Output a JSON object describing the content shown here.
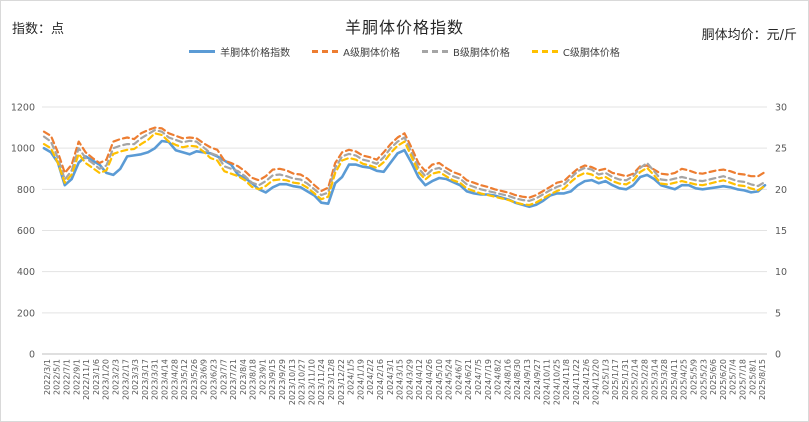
{
  "header": {
    "left_label": "指数：点",
    "right_label": "胴体均价：元/斤"
  },
  "chart_data": {
    "type": "line",
    "title": "羊胴体价格指数",
    "xlabel": "",
    "ylabel": "",
    "y_left": {
      "lim": [
        0,
        1200
      ],
      "ticks": [
        "0",
        "200",
        "400",
        "600",
        "800",
        "1000",
        "1200"
      ]
    },
    "y_right": {
      "lim": [
        0,
        30
      ],
      "ticks": [
        "0",
        "5",
        "10",
        "15",
        "20",
        "25",
        "30"
      ]
    },
    "legend_position": "top-center",
    "grid": true,
    "x_tick_labels": [
      "2022/3/1",
      "2022/5/1",
      "2022/7/1",
      "2022/9/1",
      "2022/11/1",
      "2023/1/6",
      "2023/1/20",
      "2023/2/3",
      "2023/2/17",
      "2023/3/3",
      "2023/3/17",
      "2023/3/31",
      "2023/4/14",
      "2023/4/28",
      "2023/5/12",
      "2023/5/26",
      "2023/6/9",
      "2023/6/23",
      "2023/7/7",
      "2023/7/21",
      "2023/8/4",
      "2023/8/18",
      "2023/9/1",
      "2023/9/15",
      "2023/9/29",
      "2023/10/13",
      "2023/10/27",
      "2023/11/10",
      "2023/11/24",
      "2023/12/8",
      "2023/12/22",
      "2024/1/5",
      "2024/1/19",
      "2024/2/2",
      "2024/2/16",
      "2024/3/1",
      "2024/3/15",
      "2024/3/29",
      "2024/4/12",
      "2024/4/26",
      "2024/5/10",
      "2024/5/24",
      "2024/6/7",
      "2024/6/21",
      "2024/7/5",
      "2024/7/19",
      "2024/8/2",
      "2024/8/16",
      "2024/8/30",
      "2024/9/13",
      "2024/9/27",
      "2024/10/11",
      "2024/10/25",
      "2024/11/8",
      "2024/11/22",
      "2024/12/6",
      "2024/12/20",
      "2025/1/3",
      "2025/1/17",
      "2025/1/31",
      "2025/2/14",
      "2025/2/28",
      "2025/3/14",
      "2025/3/28",
      "2025/4/11",
      "2025/4/25",
      "2025/5/9",
      "2025/5/23",
      "2025/6/6",
      "2025/6/20",
      "2025/7/4",
      "2025/7/18",
      "2025/8/1",
      "2025/8/15"
    ],
    "x_tick_labels_display": [
      "2022/3/1",
      "2022/5/1",
      "2022/7/1",
      "2022/9/1",
      "2022/11/1",
      "2023/1/6",
      "2023/1/20",
      "2023/2/3",
      "2023/2/17",
      "2023/3/3",
      "2023/3/17",
      "2023/3/31",
      "2023/4/14",
      "2023/4/28",
      "2023/5/12",
      "2023/5/26",
      "2023/6/9",
      "2023/6/23",
      "2023/7/7",
      "2023/7/21",
      "2023/8/4",
      "2023/8/18",
      "2023/9/1",
      "2023/9/15",
      "2023/9/29",
      "2023/10/13",
      "2023/10/27",
      "2023/11/10",
      "2023/11/24",
      "2023/12/8",
      "2023/12/22",
      "2024/1/5",
      "2024/1/19",
      "2024/2/2",
      "2024/2/16",
      "2024/3/1",
      "2024/3/15",
      "2024/3/29",
      "2024/4/12",
      "2024/4/26",
      "2024/5/10",
      "2024/5/24",
      "2024/6/7",
      "2024/6/21",
      "2024/7/5",
      "2024/7/19",
      "2024/8/2",
      "2024/8/16",
      "2024/8/30",
      "2024/9/13",
      "2024/9/27",
      "2024/10/11",
      "2024/10/25",
      "2024/11/8",
      "2024/11/22",
      "2024/12/6",
      "2024/12/20",
      "2025/1/3",
      "2025/1/17",
      "2025/1/31",
      "2025/2/14",
      "2025/2/28",
      "2025/3/14",
      "2025/3/28",
      "2025/4/11",
      "2025/4/25",
      "2025/5/9",
      "2025/5/23",
      "2025/6/6",
      "2025/6/20",
      "2025/7/4",
      "2025/7/18",
      "2025/8/1",
      "2025/8/15"
    ],
    "series": [
      {
        "name": "羊胴体价格指数",
        "axis": "left",
        "color": "#5B9BD5",
        "style": "solid",
        "values": [
          1000,
          980,
          930,
          820,
          850,
          930,
          960,
          940,
          920,
          880,
          870,
          900,
          960,
          965,
          970,
          980,
          1000,
          1035,
          1030,
          990,
          980,
          970,
          985,
          980,
          975,
          960,
          940,
          920,
          870,
          855,
          830,
          800,
          785,
          810,
          825,
          825,
          815,
          810,
          790,
          770,
          735,
          730,
          830,
          860,
          920,
          920,
          910,
          905,
          890,
          885,
          930,
          975,
          990,
          930,
          860,
          820,
          840,
          855,
          850,
          835,
          820,
          790,
          780,
          775,
          775,
          770,
          760,
          750,
          735,
          725,
          715,
          725,
          745,
          770,
          780,
          780,
          790,
          820,
          840,
          845,
          830,
          840,
          820,
          805,
          800,
          820,
          860,
          870,
          850,
          820,
          810,
          800,
          820,
          820,
          805,
          800,
          805,
          810,
          815,
          810,
          800,
          795,
          785,
          790,
          820
        ]
      },
      {
        "name": "A级胴体价格",
        "axis": "right",
        "color": "#ED7D31",
        "style": "dashed",
        "values": [
          27,
          26.5,
          24.5,
          22,
          23,
          25.8,
          24.5,
          23.8,
          23.2,
          23.6,
          25.8,
          26.1,
          26.3,
          26.1,
          26.8,
          27.2,
          27.5,
          27.4,
          26.8,
          26.5,
          26.2,
          26.3,
          26.2,
          25.6,
          25.1,
          24.8,
          23.5,
          23.2,
          22.8,
          22.2,
          21.4,
          21.1,
          21.6,
          22.4,
          22.5,
          22.3,
          21.9,
          21.8,
          21.3,
          20.5,
          19.8,
          20.2,
          23.2,
          24.5,
          24.8,
          24.6,
          24.1,
          23.9,
          23.6,
          24.5,
          25.5,
          26.3,
          26.8,
          25.1,
          23.2,
          22.2,
          23,
          23.2,
          22.6,
          22.1,
          21.8,
          21.1,
          20.8,
          20.5,
          20.3,
          20,
          19.8,
          19.6,
          19.3,
          19.1,
          19,
          19.3,
          19.8,
          20.3,
          20.8,
          21,
          21.8,
          22.5,
          22.9,
          22.7,
          22.3,
          22.5,
          22,
          21.8,
          21.6,
          21.9,
          22.8,
          22.9,
          22.4,
          21.9,
          21.8,
          22,
          22.5,
          22.3,
          22,
          21.9,
          22.1,
          22.3,
          22.4,
          22.2,
          21.9,
          21.8,
          21.6,
          21.6,
          22.1
        ]
      },
      {
        "name": "B级胴体价格",
        "axis": "right",
        "color": "#A5A5A5",
        "style": "dashed",
        "values": [
          26.4,
          25.8,
          23.8,
          21.2,
          22.3,
          25,
          23.8,
          23.2,
          22.5,
          22.9,
          25,
          25.3,
          25.5,
          25.5,
          26.2,
          26.7,
          27.2,
          27,
          26.3,
          26,
          25.7,
          25.9,
          25.8,
          25.1,
          24.4,
          24.1,
          22.8,
          22.5,
          22.2,
          21.6,
          20.8,
          20.5,
          21,
          21.7,
          21.8,
          21.6,
          21.3,
          21.2,
          20.7,
          20,
          19.3,
          19.6,
          22.6,
          24,
          24.3,
          24.1,
          23.6,
          23.4,
          23.1,
          23.9,
          25,
          25.8,
          26.3,
          24.5,
          22.6,
          21.6,
          22.4,
          22.6,
          22.1,
          21.6,
          21.3,
          20.6,
          20.3,
          20,
          19.8,
          19.6,
          19.4,
          19.2,
          18.9,
          18.7,
          18.6,
          18.9,
          19.4,
          19.9,
          20.3,
          20.6,
          21.4,
          22.2,
          22.6,
          22.4,
          21.8,
          22,
          21.5,
          21.2,
          21.1,
          21.6,
          22.6,
          23.2,
          22.2,
          21.2,
          21.1,
          21.3,
          21.5,
          21.3,
          21.1,
          21,
          21.2,
          21.4,
          21.6,
          21.3,
          21,
          20.9,
          20.6,
          20.4,
          20.9
        ]
      },
      {
        "name": "C级胴体价格",
        "axis": "right",
        "color": "#FFC000",
        "style": "dashed",
        "values": [
          25.5,
          25,
          23.2,
          20.8,
          21.8,
          24.3,
          23.2,
          22.6,
          22,
          22.3,
          24.3,
          24.6,
          24.8,
          24.9,
          25.5,
          26,
          26.8,
          26.6,
          25.8,
          25.4,
          25.1,
          25.3,
          25.2,
          24.6,
          23.8,
          23.5,
          22.2,
          21.9,
          21.6,
          21.1,
          20.3,
          20,
          20.4,
          21.1,
          21.2,
          21.1,
          20.8,
          20.7,
          20.2,
          19.5,
          18.8,
          19.1,
          22,
          23.5,
          23.8,
          23.6,
          23.1,
          22.9,
          22.6,
          23.3,
          24.4,
          25.3,
          25.8,
          24,
          22.1,
          21.2,
          21.9,
          22.1,
          21.6,
          21.1,
          20.8,
          20.1,
          19.8,
          19.5,
          19.3,
          19.1,
          18.9,
          18.7,
          18.4,
          18.2,
          18.1,
          18.4,
          18.9,
          19.4,
          19.8,
          20.1,
          20.9,
          21.6,
          22,
          21.8,
          21.3,
          21.5,
          21,
          20.7,
          20.6,
          21.1,
          22.1,
          22.6,
          21.7,
          20.7,
          20.6,
          20.8,
          21,
          20.8,
          20.6,
          20.5,
          20.7,
          20.9,
          21.1,
          20.8,
          20.5,
          20.4,
          20.1,
          19.9,
          20.4
        ]
      }
    ]
  }
}
